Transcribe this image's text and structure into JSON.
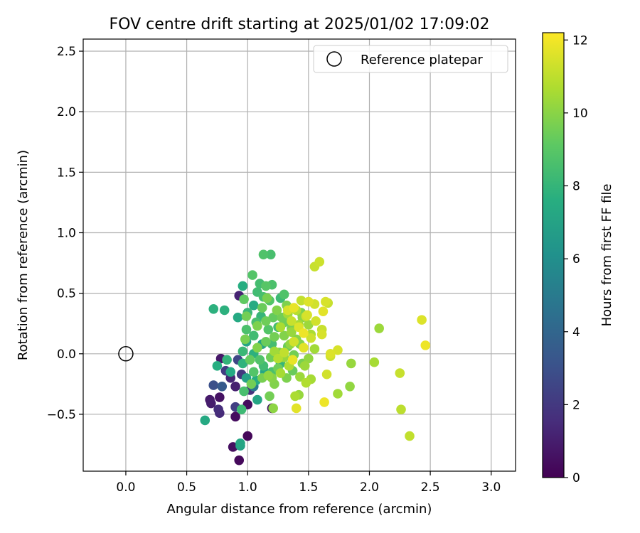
{
  "chart_data": {
    "type": "scatter",
    "title": "FOV centre drift starting at 2025/01/02 17:09:02",
    "xlabel": "Angular distance from reference (arcmin)",
    "ylabel": "Rotation from reference (arcmin)",
    "xlim": [
      -0.35,
      3.2
    ],
    "ylim": [
      -0.97,
      2.6
    ],
    "xticks": [
      0.0,
      0.5,
      1.0,
      1.5,
      2.0,
      2.5,
      3.0
    ],
    "xtick_labels": [
      "0.0",
      "0.5",
      "1.0",
      "1.5",
      "2.0",
      "2.5",
      "3.0"
    ],
    "yticks": [
      -0.5,
      0.0,
      0.5,
      1.0,
      1.5,
      2.0,
      2.5
    ],
    "ytick_labels": [
      "−0.5",
      "0.0",
      "0.5",
      "1.0",
      "1.5",
      "2.0",
      "2.5"
    ],
    "grid": true,
    "legend": {
      "placement": "top-right",
      "entries": [
        "Reference platepar"
      ]
    },
    "reference_point": {
      "x": 0.0,
      "y": 0.0
    },
    "colorbar": {
      "label": "Hours from first FF file",
      "colormap": "viridis",
      "range": [
        0,
        12.2
      ],
      "ticks": [
        0,
        2,
        4,
        6,
        8,
        10,
        12
      ],
      "tick_labels": [
        "0",
        "2",
        "4",
        "6",
        "8",
        "10",
        "12"
      ]
    },
    "series": [
      {
        "points": [
          {
            "x": 0.93,
            "y": -0.88,
            "h": 0.3
          },
          {
            "x": 0.88,
            "y": -0.77,
            "h": 0.5
          },
          {
            "x": 1.0,
            "y": -0.68,
            "h": 0.2
          },
          {
            "x": 0.9,
            "y": -0.52,
            "h": 0.4
          },
          {
            "x": 0.77,
            "y": -0.36,
            "h": 0.6
          },
          {
            "x": 0.69,
            "y": -0.38,
            "h": 0.9
          },
          {
            "x": 0.7,
            "y": -0.41,
            "h": 1.0
          },
          {
            "x": 0.76,
            "y": -0.46,
            "h": 1.6
          },
          {
            "x": 0.77,
            "y": -0.49,
            "h": 1.5
          },
          {
            "x": 0.9,
            "y": -0.44,
            "h": 2.3
          },
          {
            "x": 1.0,
            "y": -0.42,
            "h": 0.4
          },
          {
            "x": 1.2,
            "y": -0.45,
            "h": 0.7
          },
          {
            "x": 0.9,
            "y": -0.27,
            "h": 1.1
          },
          {
            "x": 0.72,
            "y": -0.26,
            "h": 3.0
          },
          {
            "x": 0.79,
            "y": -0.27,
            "h": 3.5
          },
          {
            "x": 0.82,
            "y": -0.14,
            "h": 2.2
          },
          {
            "x": 0.78,
            "y": -0.04,
            "h": 0.8
          },
          {
            "x": 0.86,
            "y": -0.2,
            "h": 1.3
          },
          {
            "x": 0.95,
            "y": -0.17,
            "h": 2.0
          },
          {
            "x": 1.02,
            "y": -0.3,
            "h": 1.8
          },
          {
            "x": 0.93,
            "y": 0.48,
            "h": 1.2
          },
          {
            "x": 0.92,
            "y": -0.05,
            "h": 2.6
          },
          {
            "x": 1.05,
            "y": -0.27,
            "h": 5.0
          },
          {
            "x": 0.65,
            "y": -0.55,
            "h": 7.4
          },
          {
            "x": 0.94,
            "y": -0.74,
            "h": 7.2
          },
          {
            "x": 0.94,
            "y": -0.76,
            "h": 7.0
          },
          {
            "x": 0.72,
            "y": 0.37,
            "h": 7.8
          },
          {
            "x": 0.81,
            "y": 0.36,
            "h": 7.8
          },
          {
            "x": 0.75,
            "y": -0.1,
            "h": 7.6
          },
          {
            "x": 0.83,
            "y": -0.05,
            "h": 8.0
          },
          {
            "x": 0.86,
            "y": -0.15,
            "h": 7.4
          },
          {
            "x": 0.96,
            "y": 0.56,
            "h": 7.6
          },
          {
            "x": 0.99,
            "y": -0.2,
            "h": 7.0
          },
          {
            "x": 1.08,
            "y": -0.38,
            "h": 7.2
          },
          {
            "x": 1.07,
            "y": -0.22,
            "h": 7.6
          },
          {
            "x": 0.92,
            "y": 0.3,
            "h": 7.4
          },
          {
            "x": 1.05,
            "y": 0.0,
            "h": 7.8
          },
          {
            "x": 0.99,
            "y": 0.1,
            "h": 7.2
          },
          {
            "x": 1.05,
            "y": 0.4,
            "h": 7.5
          },
          {
            "x": 1.14,
            "y": -0.15,
            "h": 7.3
          },
          {
            "x": 1.12,
            "y": 0.08,
            "h": 7.1
          },
          {
            "x": 0.96,
            "y": -0.08,
            "h": 7.9
          },
          {
            "x": 1.13,
            "y": 0.82,
            "h": 8.8
          },
          {
            "x": 1.19,
            "y": 0.82,
            "h": 8.6
          },
          {
            "x": 1.04,
            "y": 0.65,
            "h": 8.9
          },
          {
            "x": 1.1,
            "y": 0.58,
            "h": 8.5
          },
          {
            "x": 1.15,
            "y": 0.56,
            "h": 9.0
          },
          {
            "x": 1.2,
            "y": 0.57,
            "h": 8.7
          },
          {
            "x": 1.08,
            "y": 0.51,
            "h": 8.4
          },
          {
            "x": 1.13,
            "y": 0.47,
            "h": 8.6
          },
          {
            "x": 1.18,
            "y": 0.44,
            "h": 8.9
          },
          {
            "x": 1.27,
            "y": 0.46,
            "h": 8.3
          },
          {
            "x": 1.3,
            "y": 0.49,
            "h": 8.8
          },
          {
            "x": 0.97,
            "y": 0.45,
            "h": 9.2
          },
          {
            "x": 1.0,
            "y": 0.34,
            "h": 8.2
          },
          {
            "x": 1.07,
            "y": 0.26,
            "h": 8.6
          },
          {
            "x": 1.11,
            "y": 0.31,
            "h": 8.1
          },
          {
            "x": 0.99,
            "y": 0.2,
            "h": 8.7
          },
          {
            "x": 1.05,
            "y": 0.15,
            "h": 8.4
          },
          {
            "x": 1.17,
            "y": 0.2,
            "h": 8.9
          },
          {
            "x": 1.25,
            "y": 0.22,
            "h": 8.5
          },
          {
            "x": 1.02,
            "y": -0.05,
            "h": 9.3
          },
          {
            "x": 1.1,
            "y": -0.05,
            "h": 8.8
          },
          {
            "x": 0.97,
            "y": -0.31,
            "h": 8.6
          },
          {
            "x": 0.95,
            "y": -0.46,
            "h": 8.3
          },
          {
            "x": 1.13,
            "y": -0.1,
            "h": 8.4
          },
          {
            "x": 1.2,
            "y": -0.15,
            "h": 8.7
          },
          {
            "x": 1.27,
            "y": -0.08,
            "h": 8.1
          },
          {
            "x": 1.05,
            "y": -0.15,
            "h": 8.9
          },
          {
            "x": 0.96,
            "y": 0.02,
            "h": 8.2
          },
          {
            "x": 1.2,
            "y": 0.08,
            "h": 8.5
          },
          {
            "x": 0.99,
            "y": 0.31,
            "h": 9.6
          },
          {
            "x": 1.08,
            "y": 0.23,
            "h": 9.8
          },
          {
            "x": 1.12,
            "y": 0.38,
            "h": 9.4
          },
          {
            "x": 1.16,
            "y": 0.46,
            "h": 9.7
          },
          {
            "x": 1.21,
            "y": 0.3,
            "h": 9.3
          },
          {
            "x": 1.24,
            "y": 0.36,
            "h": 9.9
          },
          {
            "x": 1.3,
            "y": 0.26,
            "h": 9.5
          },
          {
            "x": 1.32,
            "y": 0.4,
            "h": 9.8
          },
          {
            "x": 1.22,
            "y": 0.14,
            "h": 9.6
          },
          {
            "x": 1.15,
            "y": 0.1,
            "h": 9.4
          },
          {
            "x": 1.3,
            "y": 0.15,
            "h": 9.9
          },
          {
            "x": 1.36,
            "y": 0.21,
            "h": 9.7
          },
          {
            "x": 1.19,
            "y": -0.03,
            "h": 9.5
          },
          {
            "x": 1.26,
            "y": 0.01,
            "h": 9.8
          },
          {
            "x": 1.33,
            "y": 0.06,
            "h": 9.4
          },
          {
            "x": 1.38,
            "y": -0.01,
            "h": 9.6
          },
          {
            "x": 1.43,
            "y": 0.08,
            "h": 9.9
          },
          {
            "x": 1.12,
            "y": -0.2,
            "h": 9.7
          },
          {
            "x": 1.18,
            "y": -0.35,
            "h": 9.6
          },
          {
            "x": 1.2,
            "y": -0.2,
            "h": 10.0
          },
          {
            "x": 1.25,
            "y": -0.12,
            "h": 9.5
          },
          {
            "x": 1.32,
            "y": -0.2,
            "h": 9.8
          },
          {
            "x": 1.37,
            "y": -0.14,
            "h": 9.4
          },
          {
            "x": 1.22,
            "y": -0.25,
            "h": 9.9
          },
          {
            "x": 1.03,
            "y": -0.25,
            "h": 9.6
          },
          {
            "x": 0.98,
            "y": 0.12,
            "h": 9.7
          },
          {
            "x": 1.08,
            "y": 0.05,
            "h": 9.9
          },
          {
            "x": 1.15,
            "y": 0.27,
            "h": 9.5
          },
          {
            "x": 1.28,
            "y": 0.3,
            "h": 9.6
          },
          {
            "x": 1.44,
            "y": 0.34,
            "h": 9.8
          },
          {
            "x": 1.4,
            "y": 0.12,
            "h": 10.0
          },
          {
            "x": 1.45,
            "y": -0.08,
            "h": 9.7
          },
          {
            "x": 1.85,
            "y": -0.08,
            "h": 10.3
          },
          {
            "x": 2.08,
            "y": 0.21,
            "h": 10.4
          },
          {
            "x": 2.04,
            "y": -0.07,
            "h": 10.6
          },
          {
            "x": 1.84,
            "y": -0.27,
            "h": 10.2
          },
          {
            "x": 1.74,
            "y": -0.33,
            "h": 10.5
          },
          {
            "x": 1.21,
            "y": -0.45,
            "h": 10.1
          },
          {
            "x": 1.39,
            "y": -0.35,
            "h": 10.7
          },
          {
            "x": 1.42,
            "y": -0.34,
            "h": 10.3
          },
          {
            "x": 1.48,
            "y": -0.24,
            "h": 10.8
          },
          {
            "x": 1.52,
            "y": -0.21,
            "h": 10.6
          },
          {
            "x": 1.47,
            "y": -0.1,
            "h": 10.4
          },
          {
            "x": 1.5,
            "y": -0.04,
            "h": 10.2
          },
          {
            "x": 1.55,
            "y": 0.04,
            "h": 10.5
          },
          {
            "x": 1.36,
            "y": 0.18,
            "h": 10.3
          },
          {
            "x": 1.42,
            "y": 0.24,
            "h": 10.6
          },
          {
            "x": 1.45,
            "y": 0.3,
            "h": 10.1
          },
          {
            "x": 1.5,
            "y": 0.24,
            "h": 10.4
          },
          {
            "x": 1.27,
            "y": 0.22,
            "h": 10.7
          },
          {
            "x": 1.35,
            "y": 0.08,
            "h": 10.2
          },
          {
            "x": 1.22,
            "y": 0.02,
            "h": 10.5
          },
          {
            "x": 1.3,
            "y": -0.03,
            "h": 10.3
          },
          {
            "x": 1.34,
            "y": -0.1,
            "h": 10.8
          },
          {
            "x": 1.27,
            "y": -0.16,
            "h": 10.6
          },
          {
            "x": 1.43,
            "y": -0.19,
            "h": 10.4
          },
          {
            "x": 1.17,
            "y": -0.18,
            "h": 10.2
          },
          {
            "x": 1.4,
            "y": 0.36,
            "h": 10.9
          },
          {
            "x": 1.33,
            "y": 0.33,
            "h": 10.5
          },
          {
            "x": 1.25,
            "y": -0.04,
            "h": 10.9
          },
          {
            "x": 1.52,
            "y": 0.16,
            "h": 10.7
          },
          {
            "x": 1.59,
            "y": 0.76,
            "h": 11.3
          },
          {
            "x": 1.55,
            "y": 0.72,
            "h": 11.2
          },
          {
            "x": 1.64,
            "y": 0.43,
            "h": 11.5
          },
          {
            "x": 1.66,
            "y": 0.42,
            "h": 11.2
          },
          {
            "x": 1.55,
            "y": 0.41,
            "h": 11.4
          },
          {
            "x": 1.5,
            "y": 0.43,
            "h": 11.6
          },
          {
            "x": 1.44,
            "y": 0.44,
            "h": 11.1
          },
          {
            "x": 1.38,
            "y": 0.38,
            "h": 11.8
          },
          {
            "x": 1.33,
            "y": 0.36,
            "h": 11.5
          },
          {
            "x": 1.48,
            "y": 0.31,
            "h": 11.3
          },
          {
            "x": 1.62,
            "y": 0.35,
            "h": 11.7
          },
          {
            "x": 1.56,
            "y": 0.27,
            "h": 11.4
          },
          {
            "x": 1.42,
            "y": 0.22,
            "h": 11.6
          },
          {
            "x": 1.61,
            "y": 0.2,
            "h": 11.2
          },
          {
            "x": 1.61,
            "y": 0.16,
            "h": 11.5
          },
          {
            "x": 1.52,
            "y": 0.13,
            "h": 11.3
          },
          {
            "x": 1.46,
            "y": 0.17,
            "h": 11.9
          },
          {
            "x": 1.38,
            "y": 0.1,
            "h": 11.4
          },
          {
            "x": 1.46,
            "y": 0.05,
            "h": 11.7
          },
          {
            "x": 1.68,
            "y": 0.0,
            "h": 11.6
          },
          {
            "x": 1.68,
            "y": -0.02,
            "h": 11.3
          },
          {
            "x": 1.74,
            "y": 0.03,
            "h": 11.5
          },
          {
            "x": 1.37,
            "y": -0.05,
            "h": 11.8
          },
          {
            "x": 1.65,
            "y": -0.17,
            "h": 11.4
          },
          {
            "x": 1.63,
            "y": -0.4,
            "h": 11.9
          },
          {
            "x": 1.4,
            "y": -0.45,
            "h": 11.7
          },
          {
            "x": 1.3,
            "y": 0.01,
            "h": 11.1
          },
          {
            "x": 2.25,
            "y": -0.16,
            "h": 11.2
          },
          {
            "x": 2.26,
            "y": -0.46,
            "h": 11.0
          },
          {
            "x": 2.33,
            "y": -0.68,
            "h": 11.1
          },
          {
            "x": 2.43,
            "y": 0.28,
            "h": 11.6
          },
          {
            "x": 2.46,
            "y": 0.07,
            "h": 11.9
          },
          {
            "x": 1.49,
            "y": 0.32,
            "h": 11.5
          },
          {
            "x": 1.36,
            "y": 0.27,
            "h": 11.2
          }
        ]
      }
    ]
  }
}
